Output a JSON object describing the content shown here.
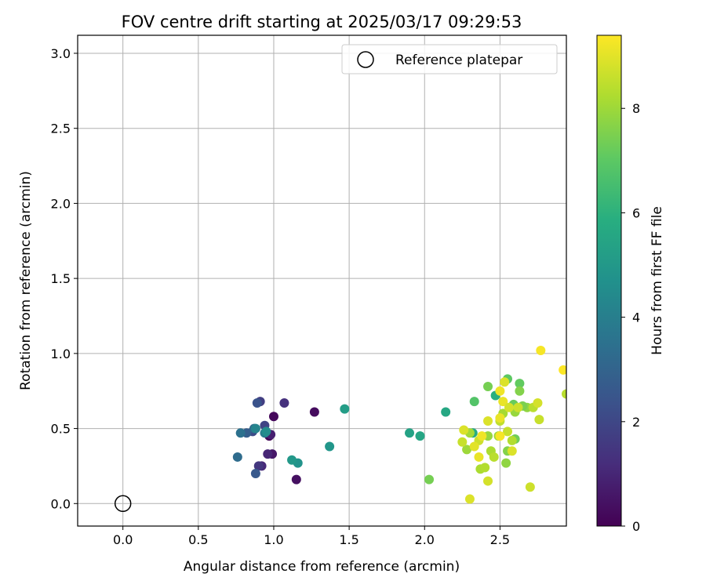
{
  "chart_data": {
    "type": "scatter",
    "title": "FOV centre drift starting at 2025/03/17 09:29:53",
    "xlabel": "Angular distance from reference (arcmin)",
    "ylabel": "Rotation from reference (arcmin)",
    "colorbar_label": "Hours from first FF file",
    "colormap": "viridis",
    "xlim": [
      -0.3,
      2.94
    ],
    "ylim": [
      -0.15,
      3.12
    ],
    "clim": [
      0,
      9.4
    ],
    "xticks": [
      "0.0",
      "0.5",
      "1.0",
      "1.5",
      "2.0",
      "2.5"
    ],
    "yticks": [
      "0.0",
      "0.5",
      "1.0",
      "1.5",
      "2.0",
      "2.5",
      "3.0"
    ],
    "cticks": [
      "0",
      "2",
      "4",
      "6",
      "8"
    ],
    "grid": true,
    "legend": {
      "placement": "upper right",
      "entries": [
        "Reference platepar"
      ]
    },
    "reference": {
      "x": 0.0,
      "y": 0.0,
      "label": "Reference platepar"
    },
    "points": [
      {
        "x": 0.97,
        "y": 0.45,
        "t": 0.1
      },
      {
        "x": 1.0,
        "y": 0.58,
        "t": 0.2
      },
      {
        "x": 1.27,
        "y": 0.61,
        "t": 0.3
      },
      {
        "x": 1.15,
        "y": 0.16,
        "t": 0.4
      },
      {
        "x": 0.99,
        "y": 0.33,
        "t": 0.6
      },
      {
        "x": 0.98,
        "y": 0.46,
        "t": 0.8
      },
      {
        "x": 0.96,
        "y": 0.33,
        "t": 1.0
      },
      {
        "x": 0.92,
        "y": 0.25,
        "t": 1.1
      },
      {
        "x": 1.07,
        "y": 0.67,
        "t": 1.3
      },
      {
        "x": 0.9,
        "y": 0.25,
        "t": 1.5
      },
      {
        "x": 0.91,
        "y": 0.68,
        "t": 1.7
      },
      {
        "x": 0.94,
        "y": 0.52,
        "t": 1.9
      },
      {
        "x": 0.86,
        "y": 0.48,
        "t": 2.1
      },
      {
        "x": 0.89,
        "y": 0.67,
        "t": 2.4
      },
      {
        "x": 0.88,
        "y": 0.2,
        "t": 2.6
      },
      {
        "x": 0.82,
        "y": 0.47,
        "t": 2.8
      },
      {
        "x": 0.87,
        "y": 0.5,
        "t": 3.2
      },
      {
        "x": 0.76,
        "y": 0.31,
        "t": 3.3
      },
      {
        "x": 0.78,
        "y": 0.47,
        "t": 3.5
      },
      {
        "x": 0.94,
        "y": 0.47,
        "t": 3.9
      },
      {
        "x": 0.88,
        "y": 0.5,
        "t": 4.2
      },
      {
        "x": 0.95,
        "y": 0.48,
        "t": 4.5
      },
      {
        "x": 1.16,
        "y": 0.27,
        "t": 4.8
      },
      {
        "x": 1.12,
        "y": 0.29,
        "t": 5.0
      },
      {
        "x": 1.37,
        "y": 0.38,
        "t": 4.9
      },
      {
        "x": 1.47,
        "y": 0.63,
        "t": 5.2
      },
      {
        "x": 1.9,
        "y": 0.47,
        "t": 5.4
      },
      {
        "x": 1.97,
        "y": 0.45,
        "t": 5.5
      },
      {
        "x": 2.14,
        "y": 0.61,
        "t": 5.6
      },
      {
        "x": 2.32,
        "y": 0.47,
        "t": 5.8
      },
      {
        "x": 2.47,
        "y": 0.72,
        "t": 5.9
      },
      {
        "x": 2.03,
        "y": 0.16,
        "t": 7.4
      },
      {
        "x": 2.33,
        "y": 0.68,
        "t": 6.8
      },
      {
        "x": 2.55,
        "y": 0.83,
        "t": 7.0
      },
      {
        "x": 2.63,
        "y": 0.8,
        "t": 7.1
      },
      {
        "x": 2.42,
        "y": 0.78,
        "t": 7.4
      },
      {
        "x": 2.59,
        "y": 0.66,
        "t": 7.2
      },
      {
        "x": 2.63,
        "y": 0.75,
        "t": 7.6
      },
      {
        "x": 2.68,
        "y": 0.64,
        "t": 7.8
      },
      {
        "x": 2.65,
        "y": 0.65,
        "t": 7.5
      },
      {
        "x": 2.6,
        "y": 0.43,
        "t": 7.3
      },
      {
        "x": 2.55,
        "y": 0.35,
        "t": 7.6
      },
      {
        "x": 2.54,
        "y": 0.27,
        "t": 7.8
      },
      {
        "x": 2.42,
        "y": 0.45,
        "t": 7.9
      },
      {
        "x": 2.28,
        "y": 0.36,
        "t": 8.0
      },
      {
        "x": 2.3,
        "y": 0.47,
        "t": 8.1
      },
      {
        "x": 2.37,
        "y": 0.23,
        "t": 8.2
      },
      {
        "x": 2.4,
        "y": 0.24,
        "t": 8.3
      },
      {
        "x": 2.44,
        "y": 0.35,
        "t": 8.2
      },
      {
        "x": 2.46,
        "y": 0.31,
        "t": 8.4
      },
      {
        "x": 2.49,
        "y": 0.45,
        "t": 8.0
      },
      {
        "x": 2.5,
        "y": 0.55,
        "t": 8.5
      },
      {
        "x": 2.52,
        "y": 0.6,
        "t": 8.1
      },
      {
        "x": 2.55,
        "y": 0.48,
        "t": 8.6
      },
      {
        "x": 2.58,
        "y": 0.42,
        "t": 8.3
      },
      {
        "x": 2.6,
        "y": 0.61,
        "t": 7.9
      },
      {
        "x": 2.62,
        "y": 0.64,
        "t": 8.7
      },
      {
        "x": 2.7,
        "y": 0.11,
        "t": 8.7
      },
      {
        "x": 2.72,
        "y": 0.64,
        "t": 8.4
      },
      {
        "x": 2.76,
        "y": 0.56,
        "t": 8.6
      },
      {
        "x": 2.75,
        "y": 0.67,
        "t": 8.8
      },
      {
        "x": 2.3,
        "y": 0.03,
        "t": 8.9
      },
      {
        "x": 2.42,
        "y": 0.15,
        "t": 8.8
      },
      {
        "x": 2.26,
        "y": 0.49,
        "t": 8.9
      },
      {
        "x": 2.25,
        "y": 0.41,
        "t": 8.6
      },
      {
        "x": 2.36,
        "y": 0.42,
        "t": 8.7
      },
      {
        "x": 2.33,
        "y": 0.38,
        "t": 9.0
      },
      {
        "x": 2.36,
        "y": 0.31,
        "t": 9.1
      },
      {
        "x": 2.38,
        "y": 0.45,
        "t": 9.2
      },
      {
        "x": 2.42,
        "y": 0.55,
        "t": 8.9
      },
      {
        "x": 2.5,
        "y": 0.75,
        "t": 9.2
      },
      {
        "x": 2.53,
        "y": 0.81,
        "t": 8.9
      },
      {
        "x": 2.52,
        "y": 0.68,
        "t": 9.1
      },
      {
        "x": 2.56,
        "y": 0.64,
        "t": 8.8
      },
      {
        "x": 2.58,
        "y": 0.35,
        "t": 8.9
      },
      {
        "x": 2.5,
        "y": 0.57,
        "t": 9.1
      },
      {
        "x": 2.5,
        "y": 0.45,
        "t": 9.3
      },
      {
        "x": 2.77,
        "y": 1.02,
        "t": 9.3
      },
      {
        "x": 2.92,
        "y": 0.89,
        "t": 9.4
      },
      {
        "x": 2.94,
        "y": 0.73,
        "t": 8.4
      }
    ]
  }
}
